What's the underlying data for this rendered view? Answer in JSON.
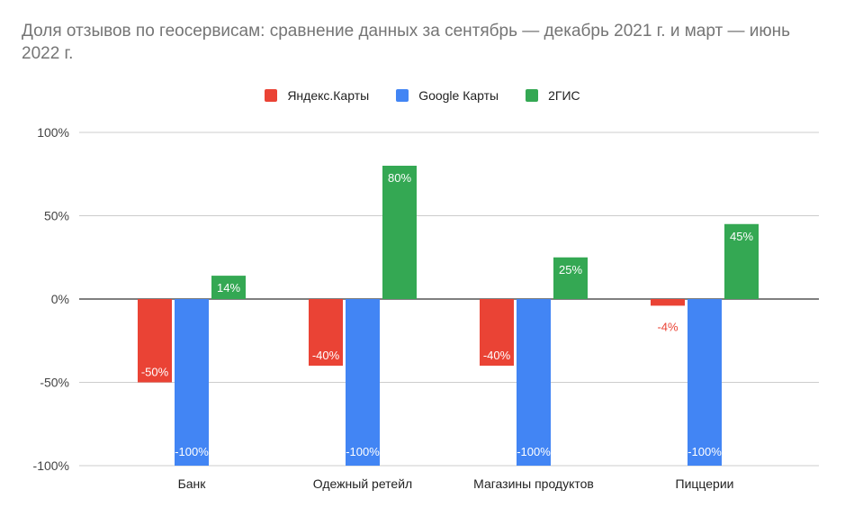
{
  "title": "Доля отзывов по геосервисам: сравнение данных за сентябрь — декабрь 2021 г. и март — июнь 2022 г.",
  "chart_data": {
    "type": "bar",
    "title": "Доля отзывов по геосервисам: сравнение данных за сентябрь — декабрь 2021 г. и март — июнь 2022 г.",
    "xlabel": "",
    "ylabel": "",
    "categories": [
      "Банк",
      "Одежный ретейл",
      "Магазины продуктов",
      "Пиццерии"
    ],
    "ylim": [
      -100,
      100
    ],
    "yticks": [
      100,
      50,
      0,
      -50,
      -100
    ],
    "ytick_labels": [
      "100%",
      "50%",
      "0%",
      "-50%",
      "-100%"
    ],
    "legend_position": "top-center",
    "grid": true,
    "series": [
      {
        "name": "Яндекс.Карты",
        "color": "#ea4335",
        "values": [
          -50,
          -40,
          -40,
          -4
        ],
        "labels": [
          "-50%",
          "-40%",
          "-40%",
          "-4%"
        ]
      },
      {
        "name": "Google Карты",
        "color": "#4285f4",
        "values": [
          -100,
          -100,
          -100,
          -100
        ],
        "labels": [
          "-100%",
          "-100%",
          "-100%",
          "-100%"
        ]
      },
      {
        "name": "2ГИС",
        "color": "#34a853",
        "values": [
          14,
          80,
          25,
          45
        ],
        "labels": [
          "14%",
          "80%",
          "25%",
          "45%"
        ]
      }
    ]
  }
}
